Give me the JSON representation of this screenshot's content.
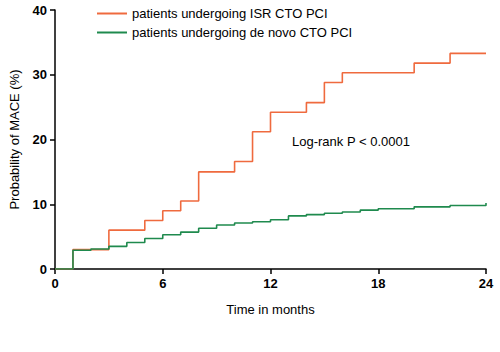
{
  "chart_data": {
    "type": "line",
    "line_style": "step",
    "x_label": "Time in months",
    "y_label": "Probability of MACE (%)",
    "xlim": [
      0,
      24
    ],
    "xticks": [
      0,
      6,
      12,
      18,
      24
    ],
    "ylim": [
      0,
      40
    ],
    "yticks": [
      0,
      10,
      20,
      30,
      40
    ],
    "grid": false,
    "legend": "top-left",
    "annotations": [
      "Log-rank P < 0.0001"
    ],
    "series": [
      {
        "name": "patients undergoing ISR CTO PCI",
        "color": "#ef6a3e",
        "x": [
          0,
          1,
          3,
          5,
          6,
          7,
          8,
          10,
          11,
          12,
          14,
          15,
          16,
          20,
          22,
          24
        ],
        "values": [
          0,
          3,
          6,
          7.5,
          9,
          10.5,
          15,
          16.6,
          21.2,
          24.2,
          25.7,
          28.8,
          30.3,
          31.8,
          33.3,
          33.3
        ]
      },
      {
        "name": "patients undergoing de novo CTO PCI",
        "color": "#1f8a4e",
        "x": [
          0,
          1,
          2,
          3,
          4,
          5,
          6,
          7,
          8,
          9,
          10,
          11,
          12,
          13,
          14,
          15,
          16,
          17,
          18,
          20,
          22,
          24
        ],
        "values": [
          0,
          2.9,
          3.1,
          3.5,
          4.1,
          4.7,
          5.3,
          5.7,
          6.3,
          6.8,
          7.1,
          7.3,
          7.6,
          8.2,
          8.4,
          8.6,
          8.8,
          9.1,
          9.3,
          9.6,
          9.8,
          10.2
        ]
      }
    ]
  }
}
